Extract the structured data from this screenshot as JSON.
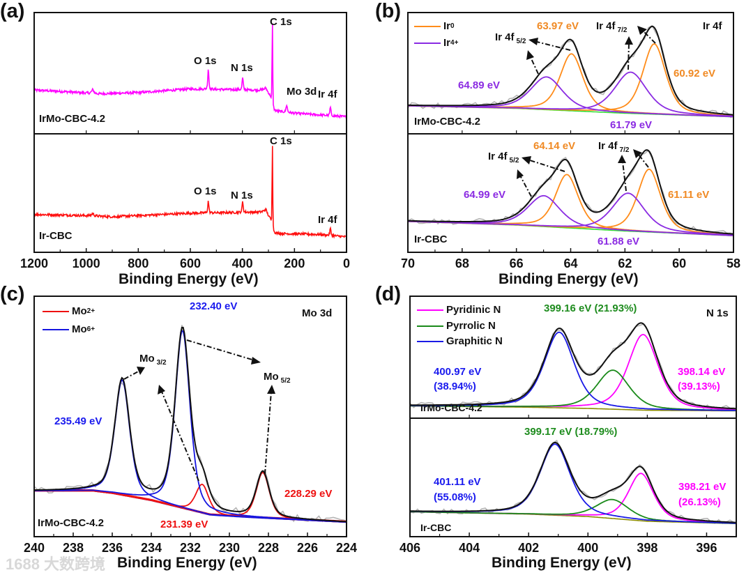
{
  "panel_labels": [
    "(a)",
    "(b)",
    "(c)",
    "(d)"
  ],
  "watermark": "1688 大数跨境",
  "chart_data": [
    {
      "panel": "(a)",
      "type": "line",
      "survey": true,
      "xlabel": "Binding Energy (eV)",
      "xlim": [
        1200,
        0
      ],
      "xticks": [
        1200,
        1000,
        800,
        600,
        400,
        200,
        0
      ],
      "subplots": [
        {
          "sample": "IrMo-CBC-4.2",
          "ylim": [
            0,
            100
          ],
          "color": "#ff00ff",
          "baseline": {
            "color": "#ff00ff",
            "points": [
              [
                1200,
                36
              ],
              [
                1100,
                35
              ],
              [
                950,
                33
              ],
              [
                800,
                34
              ],
              [
                600,
                37
              ],
              [
                320,
                36
              ],
              [
                300,
                33
              ],
              [
                292,
                30
              ],
              [
                285,
                19
              ],
              [
                200,
                17
              ],
              [
                0,
                14
              ]
            ]
          },
          "components": [
            {
              "name": "survey",
              "color": "#ff00ff",
              "peaks": [
                {
                  "label": "C 1s",
                  "center": 284.8,
                  "height": 73,
                  "fwhm": 3
                },
                {
                  "label": "O 1s",
                  "center": 531,
                  "height": 17,
                  "fwhm": 5
                },
                {
                  "label": "N 1s",
                  "center": 399,
                  "height": 10,
                  "fwhm": 5
                },
                {
                  "label": "Mo 3d",
                  "center": 230,
                  "height": 6,
                  "fwhm": 6
                },
                {
                  "label": "Ir 4f",
                  "center": 62,
                  "height": 7,
                  "fwhm": 5
                },
                {
                  "center": 975,
                  "height": 3,
                  "fwhm": 10
                },
                {
                  "center": 310,
                  "height": 3,
                  "fwhm": 12
                }
              ]
            }
          ]
        },
        {
          "sample": "Ir-CBC",
          "ylim": [
            0,
            100
          ],
          "color": "#ff1010",
          "baseline": {
            "color": "#ff1010",
            "points": [
              [
                1200,
                32
              ],
              [
                1000,
                31
              ],
              [
                900,
                30
              ],
              [
                600,
                33
              ],
              [
                320,
                34
              ],
              [
                300,
                30
              ],
              [
                292,
                27
              ],
              [
                285,
                16
              ],
              [
                100,
                15
              ],
              [
                0,
                13
              ]
            ]
          },
          "components": [
            {
              "name": "survey",
              "color": "#ff1010",
              "peaks": [
                {
                  "label": "C 1s",
                  "center": 284.8,
                  "height": 76,
                  "fwhm": 3
                },
                {
                  "label": "O 1s",
                  "center": 531,
                  "height": 10,
                  "fwhm": 5
                },
                {
                  "label": "N 1s",
                  "center": 399,
                  "height": 9,
                  "fwhm": 5
                },
                {
                  "label": "Ir 4f",
                  "center": 62,
                  "height": 6,
                  "fwhm": 5
                },
                {
                  "center": 975,
                  "height": 2,
                  "fwhm": 10
                },
                {
                  "center": 310,
                  "height": 4,
                  "fwhm": 12
                }
              ]
            }
          ]
        }
      ]
    },
    {
      "panel": "(b)",
      "type": "line",
      "title": "Ir 4f",
      "xlabel": "Binding Energy (eV)",
      "xlim": [
        70,
        58
      ],
      "xticks": [
        70,
        68,
        66,
        64,
        62,
        60,
        58
      ],
      "legend": [
        {
          "base": "Ir",
          "sup": "0",
          "color": "#ff8c1a"
        },
        {
          "base": "Ir",
          "sup": "4+",
          "color": "#8a2be2"
        }
      ],
      "annotations": {
        "ir4f52": {
          "text": "Ir 4f",
          "sub": "5/2"
        },
        "ir4f72": {
          "text": "Ir 4f",
          "sub": "7/2"
        }
      },
      "subplots": [
        {
          "sample": "IrMo-CBC-4.2",
          "ylim": [
            0,
            100
          ],
          "baseline": {
            "color": "#33dd33",
            "points": [
              [
                70,
                23
              ],
              [
                66,
                21
              ],
              [
                62,
                17
              ],
              [
                58,
                14
              ]
            ]
          },
          "components": [
            {
              "name": "Ir0",
              "color": "#ff8c1a",
              "peaks": [
                {
                  "label": "63.97 eV",
                  "center": 63.97,
                  "height": 47,
                  "fwhm": 1.0
                },
                {
                  "label": "60.92 eV",
                  "center": 60.92,
                  "height": 58,
                  "fwhm": 1.0
                }
              ]
            },
            {
              "name": "Ir4+",
              "color": "#8a2be2",
              "peaks": [
                {
                  "label": "64.89 eV",
                  "center": 64.89,
                  "height": 27,
                  "fwhm": 1.4
                },
                {
                  "label": "61.79 eV",
                  "center": 61.79,
                  "height": 34,
                  "fwhm": 1.4
                }
              ]
            }
          ]
        },
        {
          "sample": "Ir-CBC",
          "ylim": [
            0,
            100
          ],
          "baseline": {
            "color": "#33dd33",
            "points": [
              [
                70,
                26
              ],
              [
                66,
                23
              ],
              [
                62,
                18
              ],
              [
                58,
                14
              ]
            ]
          },
          "components": [
            {
              "name": "Ir0",
              "color": "#ff8c1a",
              "peaks": [
                {
                  "label": "64.14 eV",
                  "center": 64.14,
                  "height": 45,
                  "fwhm": 1.0
                },
                {
                  "label": "61.11 eV",
                  "center": 61.11,
                  "height": 53,
                  "fwhm": 1.0
                }
              ]
            },
            {
              "name": "Ir4+",
              "color": "#8a2be2",
              "peaks": [
                {
                  "label": "64.99 eV",
                  "center": 64.99,
                  "height": 26,
                  "fwhm": 1.4
                },
                {
                  "label": "61.88 eV",
                  "center": 61.88,
                  "height": 32,
                  "fwhm": 1.4
                }
              ]
            }
          ]
        }
      ]
    },
    {
      "panel": "(c)",
      "type": "line",
      "title": "Mo 3d",
      "xlabel": "Binding Energy (eV)",
      "xlim": [
        240,
        224
      ],
      "xticks": [
        240,
        238,
        236,
        234,
        232,
        230,
        228,
        226,
        224
      ],
      "legend": [
        {
          "base": "Mo",
          "sup": "2+",
          "color": "#ee1111"
        },
        {
          "base": "Mo",
          "sup": "6+",
          "color": "#1515e0"
        }
      ],
      "annotations": {
        "mo32": {
          "text": "Mo",
          "sub": "3/2"
        },
        "mo52": {
          "text": "Mo",
          "sub": "5/2"
        }
      },
      "subplots": [
        {
          "sample": "IrMo-CBC-4.2",
          "ylim": [
            0,
            100
          ],
          "baseline": {
            "color": "#1515e0",
            "points": [
              [
                240,
                19
              ],
              [
                237,
                19
              ],
              [
                236,
                18
              ],
              [
                234,
                15
              ],
              [
                233,
                13
              ],
              [
                232,
                11
              ],
              [
                231,
                9
              ],
              [
                229,
                8
              ],
              [
                224,
                6
              ]
            ]
          },
          "components": [
            {
              "name": "Mo2+",
              "color": "#ee1111",
              "peaks": [
                {
                  "label": "231.39 eV",
                  "center": 231.39,
                  "height": 12,
                  "fwhm": 0.8
                },
                {
                  "label": "228.29 eV",
                  "center": 228.29,
                  "height": 19,
                  "fwhm": 0.8
                }
              ]
            },
            {
              "name": "Mo6+",
              "color": "#1515e0",
              "peaks": [
                {
                  "label": "235.49 eV",
                  "center": 235.49,
                  "height": 48,
                  "fwhm": 0.9
                },
                {
                  "label": "232.40 eV",
                  "center": 232.4,
                  "height": 74,
                  "fwhm": 0.9
                }
              ]
            }
          ]
        }
      ]
    },
    {
      "panel": "(d)",
      "type": "line",
      "title": "N 1s",
      "xlabel": "Binding Energy (eV)",
      "xlim": [
        406,
        395
      ],
      "xticks": [
        406,
        404,
        402,
        400,
        398,
        396
      ],
      "legend": [
        {
          "base": "Pyridinic N",
          "color": "#ff00ff"
        },
        {
          "base": "Pyrrolic N",
          "color": "#1a8a1a"
        },
        {
          "base": "Graphitic N",
          "color": "#1a1ae6"
        }
      ],
      "subplots": [
        {
          "sample": "IrMo-CBC-4.2",
          "ylim": [
            0,
            100
          ],
          "baseline": {
            "color": "#8b8b00",
            "points": [
              [
                406,
                10
              ],
              [
                402,
                9
              ],
              [
                400,
                8
              ],
              [
                398,
                6.5
              ],
              [
                395,
                6
              ]
            ]
          },
          "components": [
            {
              "name": "Pyridinic N",
              "color": "#ff00ff",
              "peaks": [
                {
                  "label": "398.14 eV",
                  "percent": "(39.13%)",
                  "center": 398.14,
                  "height": 62,
                  "fwhm": 1.2
                }
              ]
            },
            {
              "name": "Pyrrolic N",
              "color": "#1a8a1a",
              "peaks": [
                {
                  "label": "399.16 eV (21.93%)",
                  "center": 399.16,
                  "height": 32,
                  "fwhm": 1.3
                }
              ]
            },
            {
              "name": "Graphitic N",
              "color": "#1a1ae6",
              "peaks": [
                {
                  "label": "400.97 eV",
                  "percent": "(38.94%)",
                  "center": 400.97,
                  "height": 62,
                  "fwhm": 1.2
                }
              ]
            }
          ]
        },
        {
          "sample": "Ir-CBC",
          "ylim": [
            0,
            100
          ],
          "baseline": {
            "color": "#8b8b00",
            "points": [
              [
                406,
                21
              ],
              [
                402,
                19
              ],
              [
                400,
                17
              ],
              [
                398,
                13
              ],
              [
                395,
                11
              ]
            ]
          },
          "components": [
            {
              "name": "Pyridinic N",
              "color": "#ff00ff",
              "peaks": [
                {
                  "label": "398.21 eV",
                  "percent": "(26.13%)",
                  "center": 398.21,
                  "height": 40,
                  "fwhm": 1.0
                }
              ]
            },
            {
              "name": "Pyrrolic N",
              "color": "#1a8a1a",
              "peaks": [
                {
                  "label": "399.17 eV (18.79%)",
                  "center": 399.17,
                  "height": 16,
                  "fwhm": 1.3
                }
              ]
            },
            {
              "name": "Graphitic N",
              "color": "#1a1ae6",
              "peaks": [
                {
                  "label": "401.11 eV",
                  "percent": "(55.08%)",
                  "center": 401.11,
                  "height": 60,
                  "fwhm": 1.2
                }
              ]
            }
          ]
        }
      ]
    }
  ]
}
